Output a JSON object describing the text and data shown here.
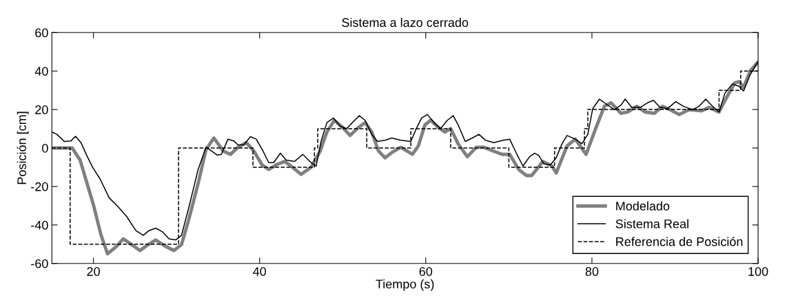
{
  "chart_data": {
    "type": "line",
    "title": "Sistema a lazo cerrado",
    "xlabel": "Tiempo (s)",
    "ylabel": "Posición [cm]",
    "xlim": [
      15,
      100
    ],
    "xticks": [
      20,
      40,
      60,
      80,
      100
    ],
    "ylim": [
      -60,
      60
    ],
    "yticks": [
      -60,
      -40,
      -20,
      0,
      20,
      40,
      60
    ],
    "grid": false,
    "legend": "lower right",
    "marker": "none",
    "series": [
      {
        "name": "Modelado",
        "color": "#808080",
        "line_style": "solid",
        "x": [
          15,
          17.45,
          18.4,
          20,
          20.9,
          21.7,
          22.7,
          23.6,
          24.6,
          25.6,
          26.6,
          27.5,
          28.6,
          29.7,
          30.6,
          31.5,
          32.6,
          33.55,
          34.5,
          35.6,
          36.5,
          37.4,
          38.4,
          39.3,
          40.3,
          41.1,
          42,
          43,
          43.8,
          45,
          46.2,
          47.3,
          48.1,
          49,
          50,
          50.9,
          51.9,
          52.7,
          53.5,
          54.3,
          55.1,
          56,
          57,
          58.4,
          59.1,
          59.9,
          60.6,
          61.5,
          62.3,
          63,
          63.9,
          65,
          66.1,
          67,
          68.1,
          69.2,
          70.1,
          71.2,
          72.1,
          72.75,
          74.1,
          75.2,
          75.7,
          77,
          78,
          79.3,
          80.5,
          81.5,
          82.3,
          83.5,
          84.3,
          85.4,
          86.4,
          87.5,
          88.5,
          89.4,
          90.5,
          91.7,
          93.2,
          94.1,
          95.3,
          96.1,
          97.2,
          97.7,
          98.25,
          99.05,
          99.9
        ],
        "values": [
          0,
          0,
          -6.3,
          -29.5,
          -45,
          -55,
          -51.5,
          -47.2,
          -50.2,
          -53.3,
          -50.2,
          -47.8,
          -50.9,
          -53.3,
          -50.2,
          -36.8,
          -18.5,
          -0.9,
          5.2,
          -1.5,
          -3.3,
          0.4,
          2.8,
          -1.5,
          -8.8,
          -11.2,
          -8.8,
          -7,
          -9.4,
          -13.7,
          -10,
          -1.5,
          8.3,
          14.4,
          10.7,
          6.5,
          10.7,
          13.2,
          8.3,
          -1.5,
          -5.1,
          -2.1,
          0.4,
          -3.3,
          1,
          12,
          14.4,
          10.7,
          8.3,
          10.1,
          2.2,
          -4.5,
          0.4,
          0.4,
          -1.5,
          -3.3,
          -3.3,
          -11.2,
          -14.3,
          -14.3,
          -7,
          -9.4,
          -13,
          1,
          4.6,
          -3.3,
          10.7,
          21.7,
          23.5,
          18,
          18.7,
          21.7,
          18.7,
          18,
          21.7,
          19.9,
          17.4,
          19.9,
          19.3,
          21.1,
          18.7,
          25.4,
          33.9,
          34.5,
          31.5,
          40,
          44.3
        ]
      },
      {
        "name": "Sistema Real",
        "color": "#000000",
        "line_style": "solid",
        "x": [
          15,
          15.6,
          16.5,
          17.3,
          17.85,
          18.5,
          19.2,
          19.9,
          20.8,
          21.9,
          23,
          24,
          25.1,
          26,
          26.7,
          27.5,
          28.3,
          29.1,
          29.9,
          30.6,
          31.5,
          32.6,
          33.55,
          34.2,
          34.9,
          35.4,
          36.2,
          36.9,
          37.4,
          38.1,
          38.9,
          39.6,
          40.4,
          41.1,
          41.7,
          42.5,
          43.2,
          44.2,
          45.2,
          46.2,
          46.8,
          47.4,
          48.1,
          48.9,
          49.7,
          50.5,
          51.3,
          52,
          52.7,
          53.5,
          54.2,
          55.1,
          55.9,
          57,
          58.2,
          58.8,
          59.5,
          60.2,
          61,
          61.8,
          62.6,
          63.3,
          63.9,
          64.75,
          65.6,
          66.4,
          67.2,
          68.2,
          69.3,
          70.1,
          70.9,
          71.7,
          72.5,
          73.1,
          73.6,
          74.2,
          75,
          75.7,
          76.4,
          77,
          78,
          78.8,
          79.5,
          80.1,
          80.9,
          81.7,
          82.7,
          83.5,
          84,
          84.8,
          85.8,
          86.7,
          87.4,
          88.2,
          89.1,
          90.1,
          91,
          92.1,
          92.9,
          93.7,
          94.5,
          95.3,
          96,
          96.9,
          97.7,
          98.25,
          99.05,
          100
        ],
        "values": [
          8.3,
          7.1,
          3.4,
          3.7,
          6.1,
          2.8,
          -3.9,
          -10,
          -16.1,
          -25.9,
          -30.7,
          -35.6,
          -42.9,
          -45.4,
          -42.9,
          -41.7,
          -43.5,
          -47.2,
          -47.8,
          -45.4,
          -30.7,
          -11.2,
          0.4,
          -1.5,
          -3.7,
          -3.3,
          4.6,
          3.7,
          1.6,
          1.6,
          5.9,
          4.6,
          -1.5,
          -7.6,
          -7.6,
          -2.7,
          -6.3,
          -7,
          -3.3,
          -7.6,
          -9.4,
          3.4,
          13.2,
          15.6,
          11.3,
          10.1,
          13.8,
          16.8,
          14.4,
          7.1,
          3.4,
          4,
          5.2,
          4,
          3.4,
          9.5,
          15.6,
          17.4,
          13.2,
          10.1,
          14.4,
          16.8,
          12,
          3.4,
          5.2,
          7.1,
          4,
          2.8,
          4,
          4.6,
          -2.7,
          -9.4,
          -4.5,
          -2.7,
          -3.9,
          -8.2,
          -8.8,
          -5.1,
          2.2,
          6.5,
          4.6,
          2.2,
          7.1,
          20.5,
          25.4,
          22.9,
          19.9,
          22.3,
          25.4,
          21.1,
          21.1,
          23.5,
          24.8,
          21.1,
          20.5,
          24.1,
          21.7,
          19.9,
          21.7,
          25.4,
          21.7,
          18.7,
          28.4,
          33.3,
          32.1,
          29.6,
          38.2,
          44.9
        ]
      },
      {
        "name": "Referencia de Posición",
        "type": "step",
        "color": "#000000",
        "line_style": "dashed",
        "x": [
          15,
          17.2,
          30.25,
          39.2,
          46.6,
          47.0,
          52.9,
          58.2,
          63.0,
          70.0,
          75.5,
          79.1,
          79.5,
          95.3,
          97.9,
          100
        ],
        "values": [
          0,
          -50,
          0,
          -10,
          0,
          10,
          0,
          10,
          0,
          -10,
          0,
          10,
          20,
          30,
          40,
          40
        ]
      }
    ]
  }
}
